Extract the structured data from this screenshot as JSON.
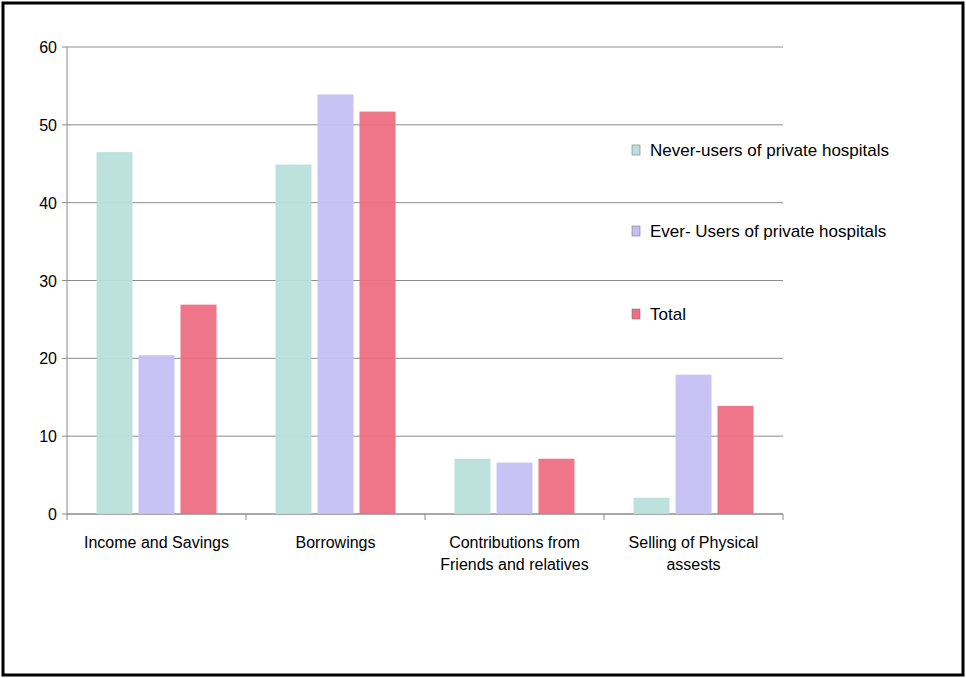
{
  "chart_data": {
    "type": "bar",
    "categories": [
      "Income and Savings",
      "Borrowings",
      "Contributions from Friends and relatives",
      "Selling of Physical assests"
    ],
    "series": [
      {
        "name": "Never-users of private hospitals",
        "color": "#b9e0dc",
        "values": [
          46.5,
          44.9,
          7.1,
          2.1
        ]
      },
      {
        "name": "Ever- Users of private hospitals",
        "color": "#c6bff4",
        "values": [
          20.4,
          53.9,
          6.6,
          17.9
        ]
      },
      {
        "name": "Total",
        "color": "#ee6f82",
        "values": [
          26.9,
          51.7,
          7.1,
          13.9
        ]
      }
    ],
    "ylim": [
      0,
      60
    ],
    "yticks": [
      0,
      10,
      20,
      30,
      40,
      50,
      60
    ],
    "grid": true,
    "legend": "top right"
  }
}
